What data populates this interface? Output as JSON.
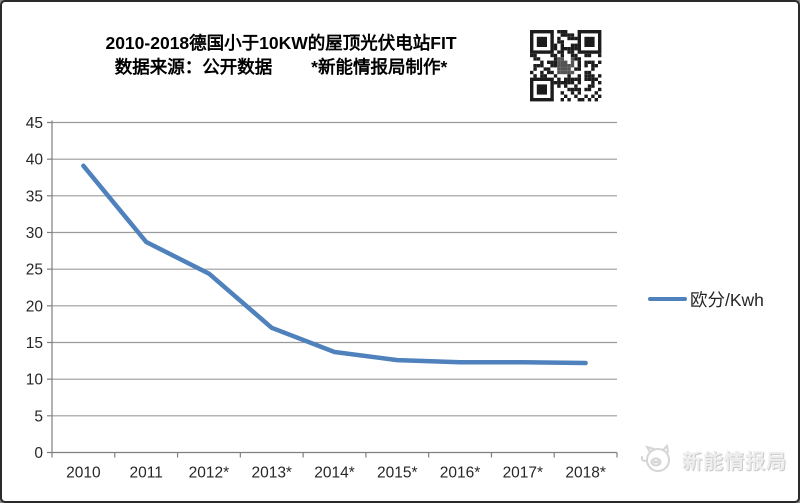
{
  "header": {
    "line1": "2010-2018德国小于10KW的屋顶光伏电站FIT",
    "line2": "数据来源：公开数据        *新能情报局制作*"
  },
  "legend": {
    "label": "欧分/Kwh"
  },
  "watermark": {
    "label": "新能情报局"
  },
  "colors": {
    "line": "#4f81bd",
    "grid": "#9b9b9b",
    "axis": "#7f7f7f",
    "tick_text": "#262626",
    "qr_dark": "#1c1c1c",
    "watermark_gray": "#d9d9d9"
  },
  "chart_data": {
    "type": "line",
    "title": "2010-2018德国小于10KW的屋顶光伏电站FIT",
    "subtitle": "数据来源：公开数据 *新能情报局制作*",
    "categories": [
      "2010",
      "2011",
      "2012*",
      "2013*",
      "2014*",
      "2015*",
      "2016*",
      "2017*",
      "2018*"
    ],
    "series": [
      {
        "name": "欧分/Kwh",
        "values": [
          39.1,
          28.7,
          24.4,
          17.0,
          13.7,
          12.6,
          12.3,
          12.3,
          12.2
        ]
      }
    ],
    "xlabel": "",
    "ylabel": "",
    "ylim": [
      0,
      45
    ],
    "ytick_step": 5,
    "grid": true,
    "legend_position": "right"
  }
}
